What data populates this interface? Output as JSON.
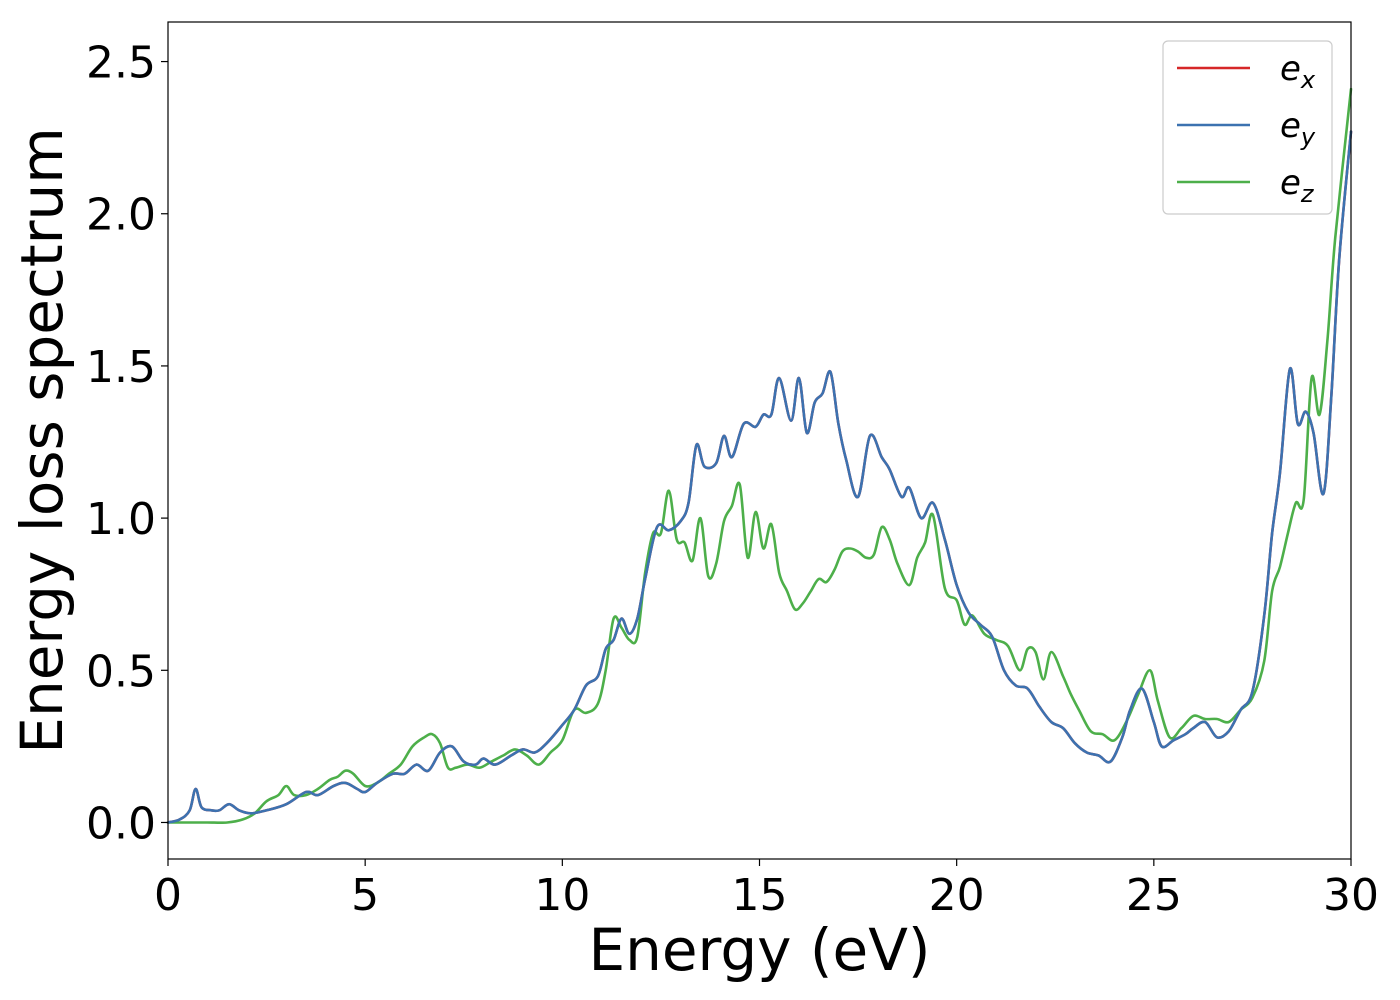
{
  "chart_data": {
    "type": "line",
    "title": "",
    "xlabel": "Energy (eV)",
    "ylabel": "Energy loss spectrum",
    "xlim": [
      0,
      30
    ],
    "ylim": [
      -0.12,
      2.63
    ],
    "xticks": [
      0,
      5,
      10,
      15,
      20,
      25,
      30
    ],
    "xtick_labels": [
      "0",
      "5",
      "10",
      "15",
      "20",
      "25",
      "30"
    ],
    "yticks": [
      0.0,
      0.5,
      1.0,
      1.5,
      2.0,
      2.5
    ],
    "ytick_labels": [
      "0.0",
      "0.5",
      "1.0",
      "1.5",
      "2.0",
      "2.5"
    ],
    "grid": false,
    "legend_position": "top-right",
    "series": [
      {
        "name": "e_x",
        "label_main": "e",
        "label_sub": "x",
        "color": "#d62728",
        "x": [
          0,
          0.3,
          0.55,
          0.7,
          0.85,
          1.1,
          1.3,
          1.55,
          1.8,
          2.1,
          2.5,
          3.0,
          3.5,
          3.8,
          4.2,
          4.5,
          4.8,
          5.0,
          5.3,
          5.7,
          6.0,
          6.3,
          6.6,
          6.9,
          7.2,
          7.5,
          7.8,
          8.0,
          8.3,
          8.7,
          9.0,
          9.3,
          9.6,
          10.0,
          10.3,
          10.6,
          10.9,
          11.1,
          11.3,
          11.5,
          11.7,
          11.9,
          12.1,
          12.4,
          12.7,
          13.0,
          13.2,
          13.4,
          13.6,
          13.9,
          14.1,
          14.3,
          14.6,
          14.9,
          15.1,
          15.3,
          15.5,
          15.8,
          16.0,
          16.2,
          16.4,
          16.6,
          16.8,
          17.0,
          17.2,
          17.5,
          17.8,
          18.1,
          18.3,
          18.6,
          18.8,
          19.1,
          19.4,
          19.7,
          20.0,
          20.3,
          20.6,
          20.9,
          21.2,
          21.5,
          21.8,
          22.1,
          22.4,
          22.7,
          23.0,
          23.3,
          23.6,
          23.9,
          24.2,
          24.4,
          24.7,
          25.0,
          25.2,
          25.5,
          25.8,
          26.0,
          26.3,
          26.6,
          26.9,
          27.2,
          27.5,
          27.8,
          28.0,
          28.2,
          28.45,
          28.65,
          28.85,
          29.05,
          29.3,
          29.5,
          29.7,
          30.0
        ],
        "y": [
          0,
          0.01,
          0.04,
          0.11,
          0.05,
          0.04,
          0.04,
          0.06,
          0.04,
          0.03,
          0.04,
          0.06,
          0.1,
          0.09,
          0.12,
          0.13,
          0.11,
          0.1,
          0.13,
          0.16,
          0.16,
          0.19,
          0.17,
          0.23,
          0.25,
          0.2,
          0.19,
          0.21,
          0.19,
          0.22,
          0.24,
          0.23,
          0.26,
          0.32,
          0.37,
          0.45,
          0.48,
          0.57,
          0.6,
          0.67,
          0.62,
          0.67,
          0.8,
          0.97,
          0.96,
          0.99,
          1.05,
          1.24,
          1.17,
          1.18,
          1.27,
          1.2,
          1.31,
          1.3,
          1.34,
          1.34,
          1.46,
          1.32,
          1.46,
          1.28,
          1.38,
          1.41,
          1.48,
          1.31,
          1.19,
          1.07,
          1.27,
          1.2,
          1.16,
          1.07,
          1.1,
          1.0,
          1.05,
          0.93,
          0.78,
          0.69,
          0.65,
          0.61,
          0.5,
          0.45,
          0.44,
          0.38,
          0.33,
          0.31,
          0.26,
          0.23,
          0.22,
          0.2,
          0.28,
          0.37,
          0.44,
          0.33,
          0.25,
          0.27,
          0.29,
          0.31,
          0.33,
          0.28,
          0.3,
          0.37,
          0.43,
          0.68,
          0.95,
          1.15,
          1.49,
          1.31,
          1.35,
          1.28,
          1.08,
          1.4,
          1.85,
          2.27
        ]
      },
      {
        "name": "e_y",
        "label_main": "e",
        "label_sub": "y",
        "color": "#3c72b0",
        "x": [
          0,
          0.3,
          0.55,
          0.7,
          0.85,
          1.1,
          1.3,
          1.55,
          1.8,
          2.1,
          2.5,
          3.0,
          3.5,
          3.8,
          4.2,
          4.5,
          4.8,
          5.0,
          5.3,
          5.7,
          6.0,
          6.3,
          6.6,
          6.9,
          7.2,
          7.5,
          7.8,
          8.0,
          8.3,
          8.7,
          9.0,
          9.3,
          9.6,
          10.0,
          10.3,
          10.6,
          10.9,
          11.1,
          11.3,
          11.5,
          11.7,
          11.9,
          12.1,
          12.4,
          12.7,
          13.0,
          13.2,
          13.4,
          13.6,
          13.9,
          14.1,
          14.3,
          14.6,
          14.9,
          15.1,
          15.3,
          15.5,
          15.8,
          16.0,
          16.2,
          16.4,
          16.6,
          16.8,
          17.0,
          17.2,
          17.5,
          17.8,
          18.1,
          18.3,
          18.6,
          18.8,
          19.1,
          19.4,
          19.7,
          20.0,
          20.3,
          20.6,
          20.9,
          21.2,
          21.5,
          21.8,
          22.1,
          22.4,
          22.7,
          23.0,
          23.3,
          23.6,
          23.9,
          24.2,
          24.4,
          24.7,
          25.0,
          25.2,
          25.5,
          25.8,
          26.0,
          26.3,
          26.6,
          26.9,
          27.2,
          27.5,
          27.8,
          28.0,
          28.2,
          28.45,
          28.65,
          28.85,
          29.05,
          29.3,
          29.5,
          29.7,
          30.0
        ],
        "y": [
          0,
          0.01,
          0.04,
          0.11,
          0.05,
          0.04,
          0.04,
          0.06,
          0.04,
          0.03,
          0.04,
          0.06,
          0.1,
          0.09,
          0.12,
          0.13,
          0.11,
          0.1,
          0.13,
          0.16,
          0.16,
          0.19,
          0.17,
          0.23,
          0.25,
          0.2,
          0.19,
          0.21,
          0.19,
          0.22,
          0.24,
          0.23,
          0.26,
          0.32,
          0.37,
          0.45,
          0.48,
          0.57,
          0.6,
          0.67,
          0.62,
          0.67,
          0.8,
          0.97,
          0.96,
          0.99,
          1.05,
          1.24,
          1.17,
          1.18,
          1.27,
          1.2,
          1.31,
          1.3,
          1.34,
          1.34,
          1.46,
          1.32,
          1.46,
          1.28,
          1.38,
          1.41,
          1.48,
          1.31,
          1.19,
          1.07,
          1.27,
          1.2,
          1.16,
          1.07,
          1.1,
          1.0,
          1.05,
          0.93,
          0.78,
          0.69,
          0.65,
          0.61,
          0.5,
          0.45,
          0.44,
          0.38,
          0.33,
          0.31,
          0.26,
          0.23,
          0.22,
          0.2,
          0.28,
          0.37,
          0.44,
          0.33,
          0.25,
          0.27,
          0.29,
          0.31,
          0.33,
          0.28,
          0.3,
          0.37,
          0.43,
          0.68,
          0.95,
          1.15,
          1.49,
          1.31,
          1.35,
          1.28,
          1.08,
          1.4,
          1.85,
          2.27
        ]
      },
      {
        "name": "e_z",
        "label_main": "e",
        "label_sub": "z",
        "color": "#4daf4a",
        "x": [
          0,
          0.5,
          1.0,
          1.5,
          1.9,
          2.2,
          2.5,
          2.8,
          3.0,
          3.2,
          3.5,
          3.8,
          4.1,
          4.3,
          4.5,
          4.7,
          5.0,
          5.3,
          5.6,
          5.9,
          6.2,
          6.5,
          6.7,
          6.9,
          7.1,
          7.3,
          7.6,
          7.9,
          8.2,
          8.5,
          8.8,
          9.1,
          9.4,
          9.7,
          10.0,
          10.3,
          10.6,
          10.9,
          11.1,
          11.3,
          11.5,
          11.7,
          11.9,
          12.1,
          12.3,
          12.5,
          12.7,
          12.9,
          13.1,
          13.3,
          13.5,
          13.7,
          13.9,
          14.1,
          14.3,
          14.5,
          14.7,
          14.9,
          15.1,
          15.3,
          15.5,
          15.7,
          15.9,
          16.1,
          16.3,
          16.5,
          16.7,
          16.9,
          17.1,
          17.3,
          17.5,
          17.7,
          17.9,
          18.1,
          18.3,
          18.5,
          18.8,
          19.0,
          19.2,
          19.4,
          19.7,
          20.0,
          20.2,
          20.4,
          20.7,
          21.0,
          21.3,
          21.6,
          21.8,
          22.0,
          22.2,
          22.4,
          22.7,
          22.9,
          23.1,
          23.4,
          23.7,
          24.0,
          24.3,
          24.6,
          24.9,
          25.1,
          25.4,
          25.7,
          26.0,
          26.3,
          26.6,
          26.9,
          27.2,
          27.5,
          27.8,
          28.0,
          28.2,
          28.4,
          28.6,
          28.8,
          29.0,
          29.2,
          29.4,
          29.6,
          30.0
        ],
        "y": [
          0,
          0.0,
          0.0,
          0.0,
          0.01,
          0.03,
          0.07,
          0.09,
          0.12,
          0.09,
          0.09,
          0.11,
          0.14,
          0.15,
          0.17,
          0.16,
          0.12,
          0.13,
          0.16,
          0.19,
          0.25,
          0.28,
          0.29,
          0.26,
          0.18,
          0.18,
          0.19,
          0.18,
          0.2,
          0.22,
          0.24,
          0.22,
          0.19,
          0.23,
          0.27,
          0.37,
          0.36,
          0.39,
          0.5,
          0.67,
          0.64,
          0.6,
          0.61,
          0.82,
          0.95,
          0.95,
          1.09,
          0.93,
          0.92,
          0.86,
          1.0,
          0.81,
          0.85,
          0.99,
          1.04,
          1.11,
          0.87,
          1.02,
          0.9,
          0.98,
          0.82,
          0.76,
          0.7,
          0.72,
          0.76,
          0.8,
          0.79,
          0.83,
          0.89,
          0.9,
          0.89,
          0.87,
          0.88,
          0.97,
          0.93,
          0.85,
          0.78,
          0.87,
          0.92,
          1.01,
          0.77,
          0.73,
          0.65,
          0.68,
          0.62,
          0.6,
          0.58,
          0.5,
          0.57,
          0.56,
          0.47,
          0.56,
          0.48,
          0.42,
          0.37,
          0.3,
          0.29,
          0.27,
          0.33,
          0.42,
          0.5,
          0.4,
          0.28,
          0.31,
          0.35,
          0.34,
          0.34,
          0.33,
          0.37,
          0.41,
          0.53,
          0.76,
          0.84,
          0.95,
          1.05,
          1.06,
          1.46,
          1.34,
          1.58,
          1.92,
          2.41
        ]
      }
    ]
  }
}
